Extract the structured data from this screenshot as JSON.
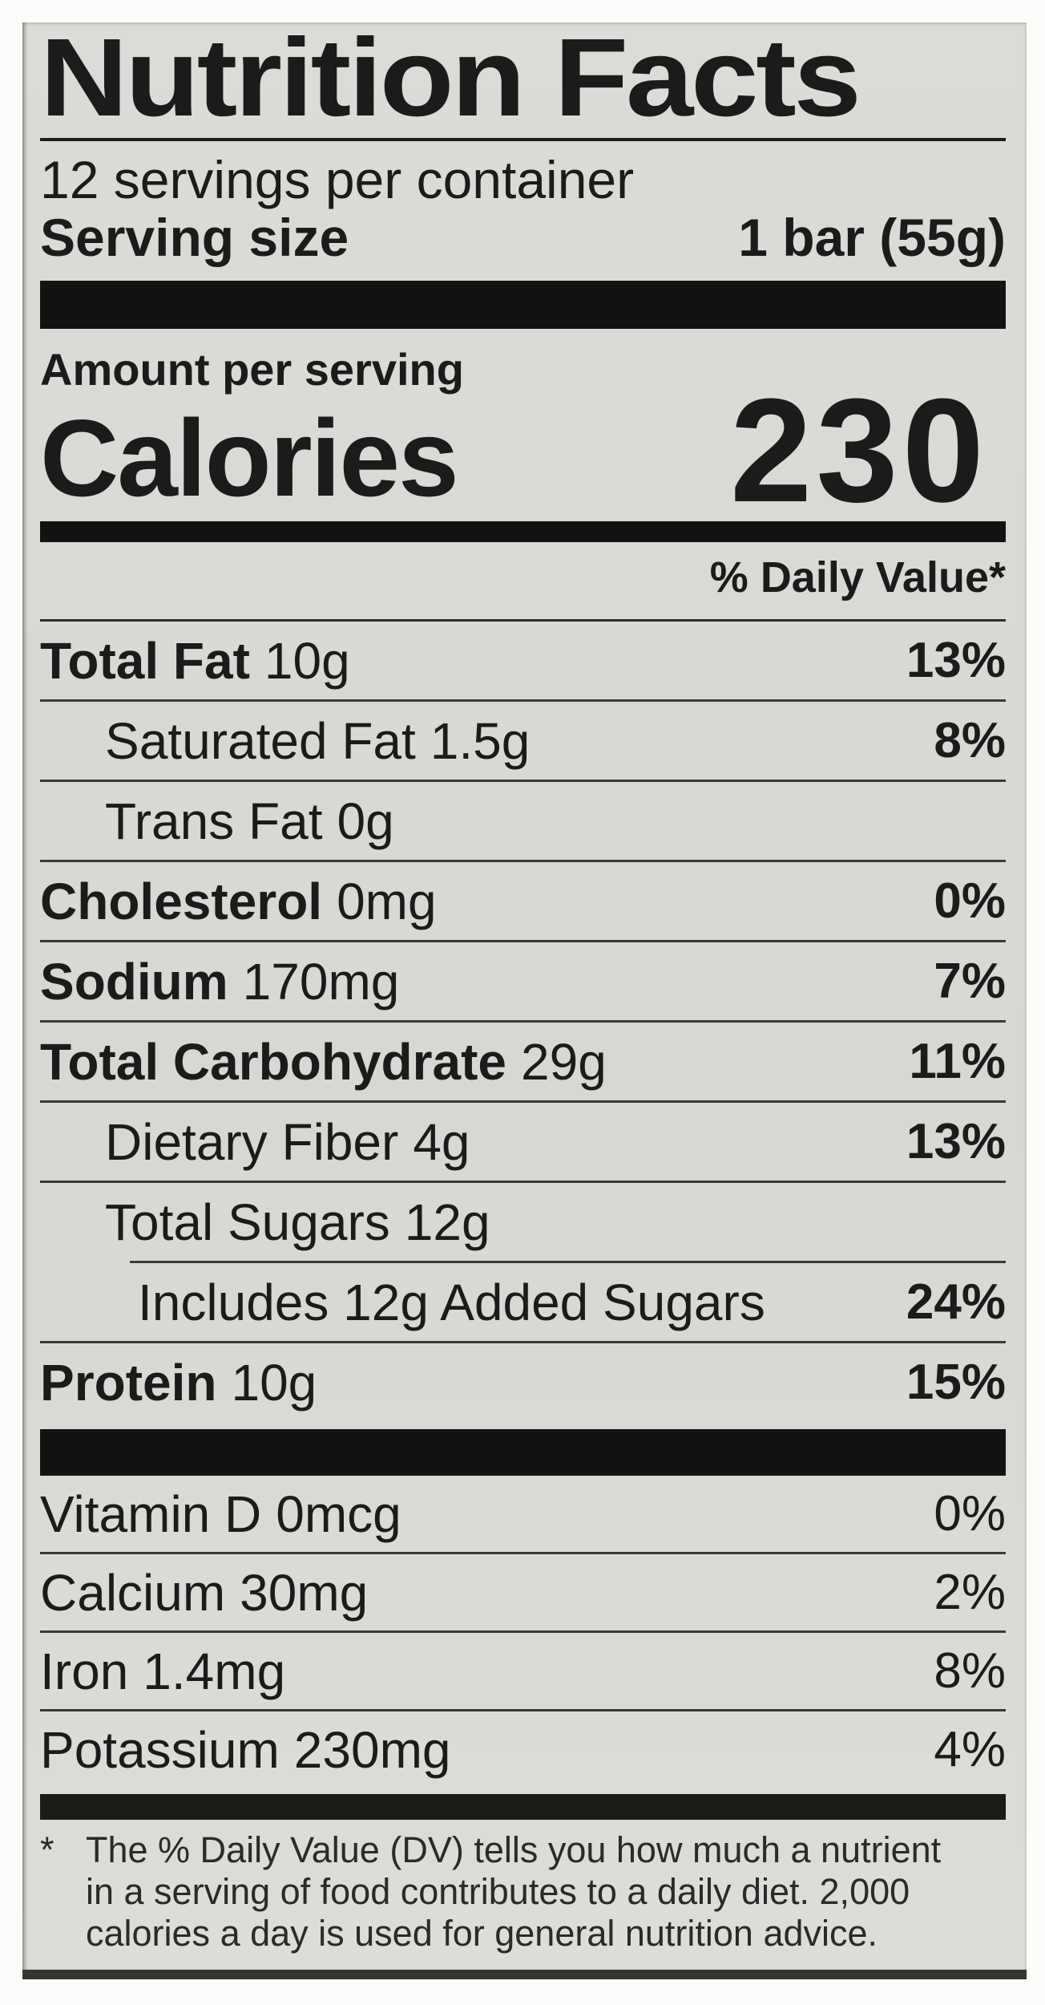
{
  "label": {
    "title": "Nutrition Facts",
    "servings_per_container": "12 servings per container",
    "serving_size_label": "Serving size",
    "serving_size_value": "1 bar (55g)",
    "amount_per_serving": "Amount per serving",
    "calories_label": "Calories",
    "calories_value": "230",
    "daily_value_header": "% Daily Value*",
    "nutrients": [
      {
        "name": "Total Fat",
        "amount": "10g",
        "dv": "13%"
      },
      {
        "name": "Saturated Fat",
        "amount": "1.5g",
        "dv": "8%"
      },
      {
        "name": "Trans Fat",
        "amount": "0g",
        "dv": ""
      },
      {
        "name": "Cholesterol",
        "amount": "0mg",
        "dv": "0%"
      },
      {
        "name": "Sodium",
        "amount": "170mg",
        "dv": "7%"
      },
      {
        "name": "Total Carbohydrate",
        "amount": "29g",
        "dv": "11%"
      },
      {
        "name": "Dietary Fiber",
        "amount": "4g",
        "dv": "13%"
      },
      {
        "name": "Total Sugars",
        "amount": "12g",
        "dv": ""
      },
      {
        "name": "Includes 12g Added Sugars",
        "amount": "",
        "dv": "24%"
      },
      {
        "name": "Protein",
        "amount": "10g",
        "dv": "15%"
      }
    ],
    "micronutrients": [
      {
        "name": "Vitamin D",
        "amount": "0mcg",
        "dv": "0%"
      },
      {
        "name": "Calcium",
        "amount": "30mg",
        "dv": "2%"
      },
      {
        "name": "Iron",
        "amount": "1.4mg",
        "dv": "8%"
      },
      {
        "name": "Potassium",
        "amount": "230mg",
        "dv": "4%"
      }
    ],
    "footnote_marker": "*",
    "footnote_lines": [
      "The % Daily Value (DV) tells you how much a nutrient",
      "in a serving of food contributes to a daily diet. 2,000",
      "calories a day is used for general nutrition advice."
    ]
  },
  "colors": {
    "label_background": "#d9d8d4",
    "text": "#1b1b1b",
    "bars": "#131313"
  }
}
